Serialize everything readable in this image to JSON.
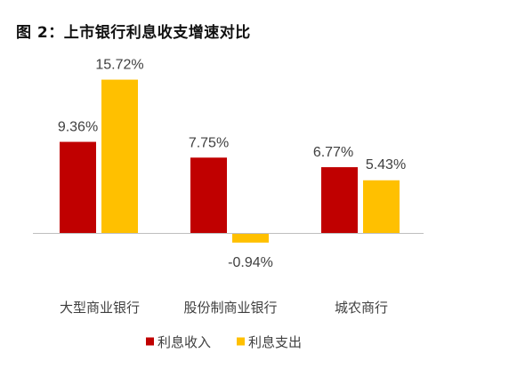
{
  "chart_data": {
    "type": "bar",
    "title": "图 2：上市银行利息收支增速对比",
    "categories": [
      "大型商业银行",
      "股份制商业银行",
      "城农商行"
    ],
    "series": [
      {
        "name": "利息收入",
        "color": "#C00000",
        "values": [
          9.36,
          7.75,
          6.77
        ],
        "labels": [
          "9.36%",
          "7.75%",
          "6.77%"
        ]
      },
      {
        "name": "利息支出",
        "color": "#FFC000",
        "values": [
          15.72,
          -0.94,
          5.43
        ],
        "labels": [
          "15.72%",
          "-0.94%",
          "5.43%"
        ]
      }
    ],
    "value_unit": "%",
    "legend_position": "bottom",
    "grid": false,
    "axis_line_color": "#BFBFBF"
  }
}
